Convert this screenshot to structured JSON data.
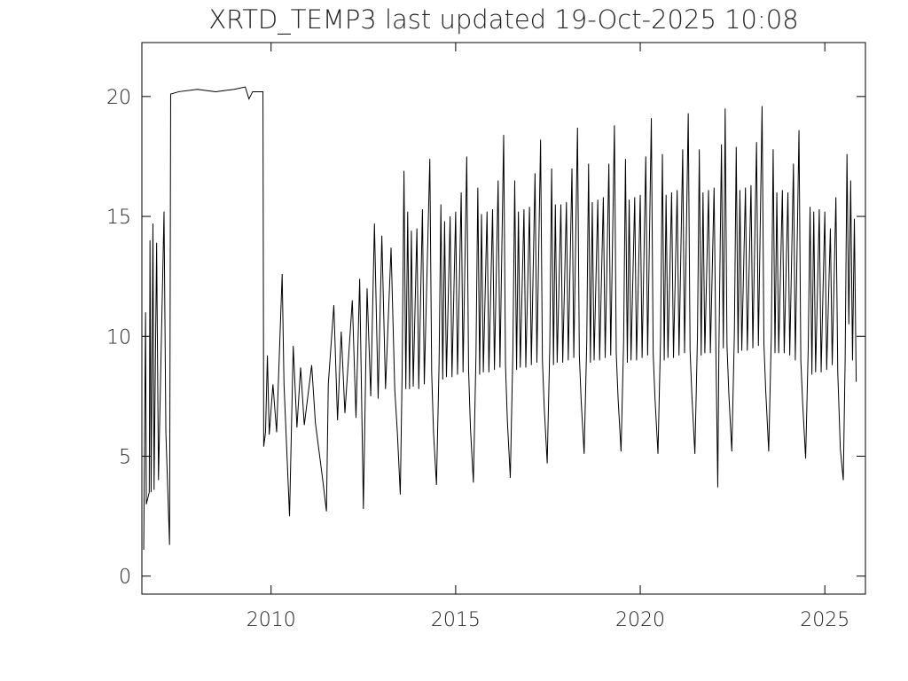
{
  "chart_data": {
    "type": "line",
    "title": "XRTD_TEMP3 last updated 19-Oct-2025 10:08",
    "color": "#000000",
    "xlim": [
      2006.5,
      2026.1
    ],
    "xticks": [
      2010,
      2015,
      2020,
      2025
    ],
    "ylim": [
      -0.75,
      22.25
    ],
    "yticks": [
      0,
      5,
      10,
      15,
      20
    ],
    "x": [
      2006.55,
      2006.6,
      2006.62,
      2006.7,
      2006.72,
      2006.75,
      2006.8,
      2006.83,
      2006.9,
      2006.95,
      2007.1,
      2007.15,
      2007.25,
      2007.28,
      2007.5,
      2008,
      2008.5,
      2009,
      2009.3,
      2009.4,
      2009.5,
      2009.78,
      2009.8,
      2009.85,
      2009.9,
      2009.95,
      2010.05,
      2010.15,
      2010.3,
      2010.35,
      2010.5,
      2010.6,
      2010.7,
      2010.8,
      2010.9,
      2011.1,
      2011.2,
      2011.4,
      2011.5,
      2011.55,
      2011.7,
      2011.8,
      2011.9,
      2012.0,
      2012.2,
      2012.3,
      2012.4,
      2012.5,
      2012.6,
      2012.7,
      2012.8,
      2012.9,
      2013.0,
      2013.1,
      2013.25,
      2013.35,
      2013.42,
      2013.5,
      2013.55,
      2013.6,
      2013.65,
      2013.7,
      2013.75,
      2013.8,
      2013.85,
      2013.95,
      2014.0,
      2014.1,
      2014.15,
      2014.3,
      2014.35,
      2014.4,
      2014.48,
      2014.55,
      2014.6,
      2014.65,
      2014.7,
      2014.75,
      2014.85,
      2014.9,
      2015.0,
      2015.05,
      2015.15,
      2015.2,
      2015.3,
      2015.35,
      2015.4,
      2015.48,
      2015.55,
      2015.6,
      2015.65,
      2015.7,
      2015.75,
      2015.85,
      2015.9,
      2016.0,
      2016.05,
      2016.15,
      2016.2,
      2016.3,
      2016.35,
      2016.4,
      2016.48,
      2016.55,
      2016.6,
      2016.65,
      2016.7,
      2016.75,
      2016.85,
      2016.9,
      2017.0,
      2017.05,
      2017.15,
      2017.2,
      2017.3,
      2017.35,
      2017.4,
      2017.48,
      2017.55,
      2017.6,
      2017.65,
      2017.7,
      2017.75,
      2017.85,
      2017.9,
      2018.0,
      2018.05,
      2018.15,
      2018.2,
      2018.3,
      2018.35,
      2018.4,
      2018.48,
      2018.55,
      2018.6,
      2018.65,
      2018.7,
      2018.75,
      2018.85,
      2018.9,
      2019.0,
      2019.05,
      2019.15,
      2019.2,
      2019.3,
      2019.35,
      2019.4,
      2019.48,
      2019.55,
      2019.6,
      2019.65,
      2019.7,
      2019.75,
      2019.85,
      2019.9,
      2020.0,
      2020.05,
      2020.15,
      2020.2,
      2020.3,
      2020.35,
      2020.4,
      2020.48,
      2020.55,
      2020.6,
      2020.65,
      2020.7,
      2020.75,
      2020.85,
      2020.9,
      2021.0,
      2021.05,
      2021.15,
      2021.2,
      2021.3,
      2021.35,
      2021.4,
      2021.48,
      2021.55,
      2021.6,
      2021.65,
      2021.7,
      2021.75,
      2021.85,
      2021.9,
      2022.0,
      2022.05,
      2022.1,
      2022.13,
      2022.2,
      2022.25,
      2022.3,
      2022.35,
      2022.4,
      2022.48,
      2022.55,
      2022.6,
      2022.65,
      2022.7,
      2022.75,
      2022.85,
      2022.9,
      2023.0,
      2023.05,
      2023.15,
      2023.2,
      2023.3,
      2023.35,
      2023.4,
      2023.48,
      2023.55,
      2023.6,
      2023.65,
      2023.7,
      2023.75,
      2023.85,
      2023.9,
      2024.0,
      2024.05,
      2024.15,
      2024.2,
      2024.3,
      2024.35,
      2024.4,
      2024.48,
      2024.55,
      2024.6,
      2024.65,
      2024.7,
      2024.75,
      2024.85,
      2024.9,
      2025.0,
      2025.05,
      2025.15,
      2025.2,
      2025.3,
      2025.35,
      2025.42,
      2025.5,
      2025.55,
      2025.6,
      2025.65,
      2025.7,
      2025.75,
      2025.8,
      2025.85
    ],
    "values": [
      1.1,
      11,
      3,
      3.5,
      14,
      3.5,
      14.7,
      3.6,
      13.9,
      4,
      15.2,
      6,
      1.3,
      20.1,
      20.2,
      20.3,
      20.2,
      20.3,
      20.4,
      19.9,
      20.2,
      20.2,
      5.4,
      6,
      9.2,
      5.9,
      8,
      6,
      12.6,
      8,
      2.5,
      9.6,
      6.2,
      8.7,
      6.3,
      8.8,
      6.4,
      4,
      2.7,
      8,
      11.3,
      6.5,
      10.2,
      6.8,
      11.5,
      6.6,
      12.4,
      2.8,
      12,
      7.5,
      14.7,
      7.4,
      14.2,
      7.8,
      13.7,
      7.8,
      6,
      3.4,
      8.5,
      16.9,
      7.8,
      15.2,
      7.8,
      14.4,
      7.9,
      14.5,
      7.8,
      15.3,
      8,
      17.4,
      8.5,
      6,
      3.8,
      8.8,
      15.5,
      8.2,
      14.8,
      8.3,
      15,
      8.3,
      15.2,
      8.4,
      16,
      8.5,
      17.5,
      8.6,
      6.2,
      3.9,
      9.2,
      16.2,
      8.4,
      15.1,
      8.5,
      15.2,
      8.5,
      15.3,
      8.6,
      16.5,
      8.7,
      18.4,
      8.8,
      6.5,
      4.1,
      9.4,
      16.5,
      8.6,
      15.2,
      8.7,
      15.3,
      8.7,
      15.4,
      8.8,
      16.8,
      8.9,
      18.2,
      9,
      7,
      4.7,
      9.6,
      17,
      8.8,
      15.5,
      8.9,
      15.5,
      8.9,
      15.6,
      9,
      17,
      9.1,
      18.7,
      9.2,
      7.3,
      5.1,
      9.7,
      17.2,
      8.9,
      15.6,
      9,
      15.7,
      9,
      15.8,
      9.1,
      17.2,
      9.2,
      18.8,
      9.3,
      7.4,
      5.2,
      9.8,
      17.4,
      8.9,
      15.7,
      9,
      15.8,
      9,
      15.9,
      9.1,
      17.5,
      9.2,
      19.1,
      9.3,
      7.4,
      5.1,
      9.9,
      17.6,
      9,
      15.9,
      9.1,
      16,
      9.1,
      16.1,
      9.2,
      17.8,
      9.3,
      19.3,
      9.4,
      7.5,
      5.1,
      10,
      17.8,
      9.2,
      16,
      9.3,
      16.1,
      9.3,
      16.2,
      9.3,
      3.7,
      9.4,
      18,
      9.5,
      19.5,
      9.6,
      7.6,
      5.2,
      10.1,
      17.9,
      9.3,
      16.1,
      9.4,
      16.2,
      9.4,
      16.3,
      9.5,
      18.1,
      9.6,
      19.6,
      9.7,
      7.7,
      5.2,
      10,
      17.8,
      9.3,
      16,
      9.3,
      16.1,
      9.3,
      16,
      9.2,
      17.2,
      9,
      18.6,
      9,
      7.2,
      4.9,
      9.5,
      15.4,
      8.4,
      15.2,
      8.5,
      15.3,
      8.5,
      15.2,
      8.6,
      14.5,
      8.8,
      15.8,
      8.5,
      5.3,
      4,
      9,
      17.6,
      10.5,
      16.5,
      9,
      14.9,
      8.1
    ]
  }
}
